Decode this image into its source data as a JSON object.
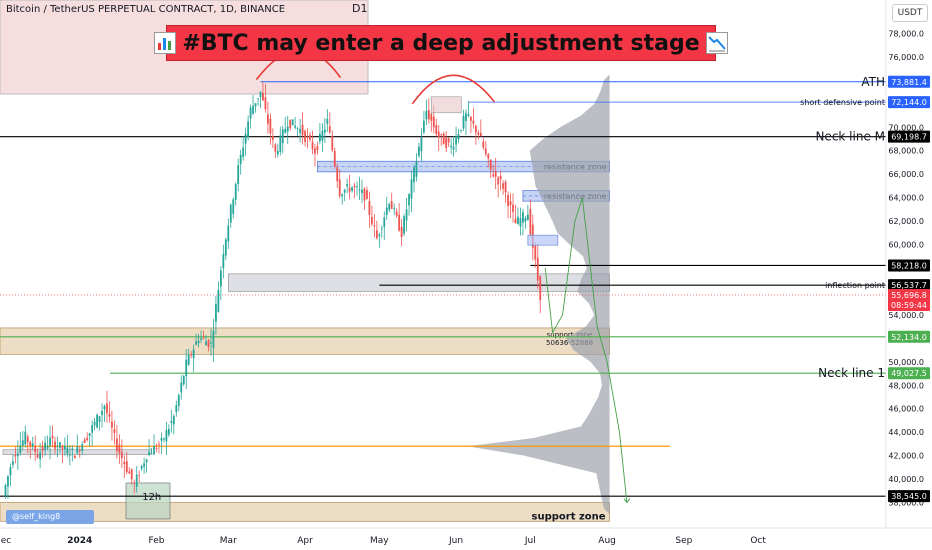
{
  "header": {
    "symbol": "Bitcoin / TetherUS PERPETUAL CONTRACT, 1D, BINANCE",
    "timeframe_marker": "D1",
    "currency": "USDT",
    "title": "#BTC may enter a deep adjustment stage",
    "author": "@self_king8"
  },
  "colors": {
    "title_bg": "#f23645",
    "up_candle": "#26a69a",
    "down_candle": "#ef5350",
    "ath_line": "#2962ff",
    "neck_line_green": "#4caf50",
    "orange_line": "#ff9800",
    "resistance_zone": "#b3c5f3",
    "support_zone": "#e8d5b5",
    "volume_profile": "#9ea3ad"
  },
  "chart_data": {
    "type": "candlestick",
    "title": "#BTC may enter a deep adjustment stage",
    "ylim": [
      36000,
      80000
    ],
    "y_ticks": [
      38000,
      40000,
      42000,
      44000,
      46000,
      48000,
      50000,
      52000,
      54000,
      56000,
      58000,
      60000,
      62000,
      64000,
      66000,
      68000,
      70000,
      72000,
      74000,
      76000,
      78000
    ],
    "y_tick_labels": [
      "38,000.0",
      "40,000.0",
      "42,000.0",
      "44,000.0",
      "46,000.0",
      "48,000.0",
      "50,000.0",
      "52,000.0",
      "54,000.0",
      "56,000.0",
      "58,000.0",
      "60,000.0",
      "62,000.0",
      "64,000.0",
      "66,000.0",
      "68,000.0",
      "70,000.0",
      "72,000.0",
      "74,000.0",
      "76,000.0",
      "78,000.0"
    ],
    "x_ticks": [
      {
        "date": "2023-12-01",
        "label": "ec"
      },
      {
        "date": "2024-01-01",
        "label": "2024"
      },
      {
        "date": "2024-02-01",
        "label": "Feb"
      },
      {
        "date": "2024-03-01",
        "label": "Mar"
      },
      {
        "date": "2024-04-01",
        "label": "Apr"
      },
      {
        "date": "2024-05-01",
        "label": "May"
      },
      {
        "date": "2024-06-01",
        "label": "Jun"
      },
      {
        "date": "2024-07-01",
        "label": "Jul"
      },
      {
        "date": "2024-08-01",
        "label": "Aug"
      },
      {
        "date": "2024-09-01",
        "label": "Sep"
      },
      {
        "date": "2024-10-01",
        "label": "Oct"
      }
    ],
    "series": [
      {
        "values": [
          {
            "date": "2023-12-01",
            "close": 38600
          },
          {
            "date": "2023-12-05",
            "close": 41900
          },
          {
            "date": "2023-12-10",
            "close": 43600
          },
          {
            "date": "2023-12-15",
            "close": 42100
          },
          {
            "date": "2023-12-20",
            "close": 43300
          },
          {
            "date": "2023-12-25",
            "close": 42600
          },
          {
            "date": "2023-12-30",
            "close": 42200
          },
          {
            "date": "2024-01-05",
            "close": 44000
          },
          {
            "date": "2024-01-11",
            "close": 46300
          },
          {
            "date": "2024-01-16",
            "close": 42800
          },
          {
            "date": "2024-01-23",
            "close": 39500
          },
          {
            "date": "2024-01-28",
            "close": 42100
          },
          {
            "date": "2024-02-03",
            "close": 43100
          },
          {
            "date": "2024-02-08",
            "close": 45300
          },
          {
            "date": "2024-02-13",
            "close": 49800
          },
          {
            "date": "2024-02-18",
            "close": 52100
          },
          {
            "date": "2024-02-23",
            "close": 51500
          },
          {
            "date": "2024-02-28",
            "close": 59500
          },
          {
            "date": "2024-03-05",
            "close": 66500
          },
          {
            "date": "2024-03-10",
            "close": 71500
          },
          {
            "date": "2024-03-14",
            "close": 73000
          },
          {
            "date": "2024-03-20",
            "close": 67800
          },
          {
            "date": "2024-03-25",
            "close": 70500
          },
          {
            "date": "2024-03-30",
            "close": 69800
          },
          {
            "date": "2024-04-05",
            "close": 68000
          },
          {
            "date": "2024-04-10",
            "close": 70500
          },
          {
            "date": "2024-04-15",
            "close": 64500
          },
          {
            "date": "2024-04-20",
            "close": 64900
          },
          {
            "date": "2024-04-25",
            "close": 64200
          },
          {
            "date": "2024-04-30",
            "close": 60500
          },
          {
            "date": "2024-05-05",
            "close": 63800
          },
          {
            "date": "2024-05-10",
            "close": 61000
          },
          {
            "date": "2024-05-15",
            "close": 66200
          },
          {
            "date": "2024-05-20",
            "close": 71400
          },
          {
            "date": "2024-05-25",
            "close": 69200
          },
          {
            "date": "2024-05-30",
            "close": 68300
          },
          {
            "date": "2024-06-05",
            "close": 71000
          },
          {
            "date": "2024-06-10",
            "close": 69500
          },
          {
            "date": "2024-06-15",
            "close": 66300
          },
          {
            "date": "2024-06-20",
            "close": 65000
          },
          {
            "date": "2024-06-25",
            "close": 61800
          },
          {
            "date": "2024-06-30",
            "close": 62700
          },
          {
            "date": "2024-07-04",
            "close": 57000
          },
          {
            "date": "2024-07-05",
            "close": 55700
          }
        ]
      }
    ],
    "levels": [
      {
        "price": 73881.4,
        "label": "ATH",
        "tag": "73,881.4",
        "color": "#2962ff"
      },
      {
        "price": 72144.0,
        "label": "short defensive point",
        "tag": "72,144.0",
        "color": "#2962ff"
      },
      {
        "price": 69198.7,
        "label": "Neck line M",
        "tag": "69,198.7",
        "color": "#000000"
      },
      {
        "price": 58218.0,
        "label": "",
        "tag": "58,218.0",
        "color": "#000000"
      },
      {
        "price": 56537.7,
        "label": "inflection point",
        "tag": "56,537.7",
        "color": "#000000"
      },
      {
        "price": 52134.0,
        "label": "",
        "tag": "52,134.0",
        "color": "#4caf50"
      },
      {
        "price": 49027.5,
        "label": "Neck line 1",
        "tag": "49,027.5",
        "color": "#4caf50"
      },
      {
        "price": 38545.0,
        "label": "",
        "tag": "38,545.0",
        "color": "#000000"
      }
    ],
    "current_price": {
      "price": 55696.8,
      "tag": "55,696.8",
      "countdown": "08:59:44"
    },
    "zones": [
      {
        "label": "resistance zone",
        "from_date": "2024-04-06",
        "to_date": "2024-08-02",
        "low": 66200,
        "high": 67100
      },
      {
        "label": "resistance zone",
        "from_date": "2024-06-28",
        "to_date": "2024-08-02",
        "low": 63700,
        "high": 64600
      },
      {
        "label": "support zone",
        "sub_label": "50636-52888",
        "from_date": "2023-11-24",
        "to_date": "2024-08-02",
        "low": 50636,
        "high": 52888
      },
      {
        "label": "support zone",
        "from_date": "2023-11-24",
        "to_date": "2024-08-02",
        "low": 36400,
        "high": 38000
      }
    ],
    "annotations": [
      {
        "text": "12h",
        "date": "2024-01-23",
        "price": 38545
      }
    ],
    "projection": [
      {
        "date": "2024-07-07",
        "price": 58000
      },
      {
        "date": "2024-07-10",
        "price": 52500
      },
      {
        "date": "2024-07-14",
        "price": 54000
      },
      {
        "date": "2024-07-19",
        "price": 62000
      },
      {
        "date": "2024-07-22",
        "price": 64000
      },
      {
        "date": "2024-07-25",
        "price": 58500
      },
      {
        "date": "2024-07-28",
        "price": 53000
      },
      {
        "date": "2024-08-01",
        "price": 50000
      },
      {
        "date": "2024-08-06",
        "price": 44000
      },
      {
        "date": "2024-08-09",
        "price": 38000
      }
    ]
  }
}
